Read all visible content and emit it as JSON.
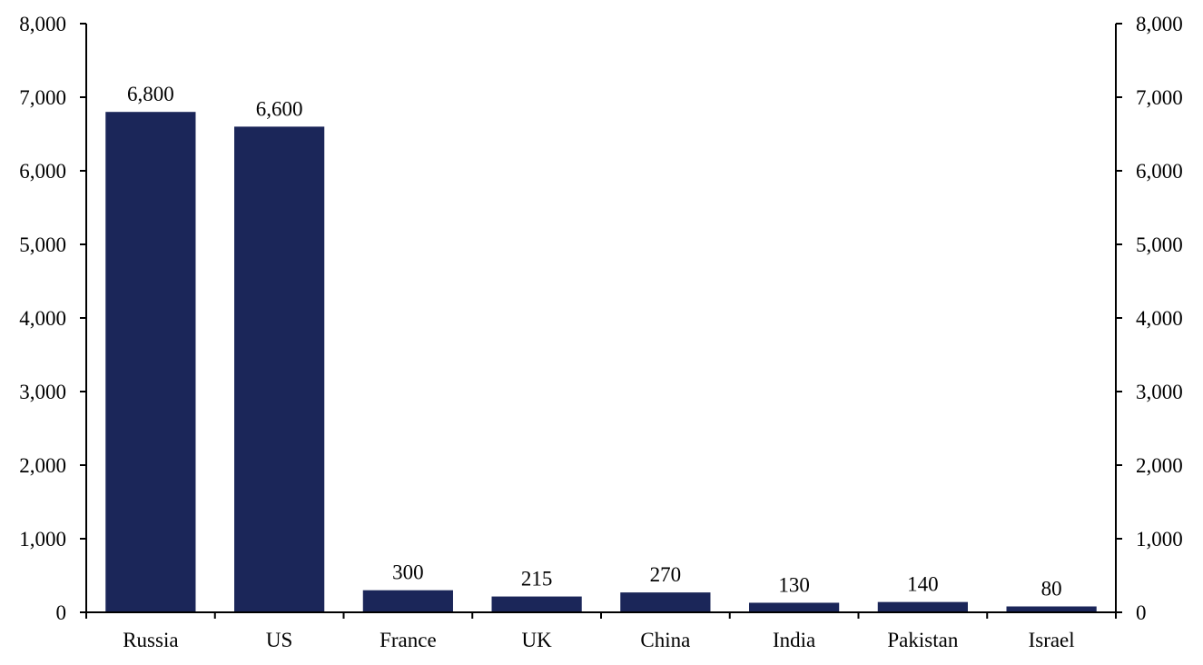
{
  "chart_data": {
    "type": "bar",
    "categories": [
      "Russia",
      "US",
      "France",
      "UK",
      "China",
      "India",
      "Pakistan",
      "Israel"
    ],
    "values": [
      6800,
      6600,
      300,
      215,
      270,
      130,
      140,
      80
    ],
    "data_labels": [
      "6,800",
      "6,600",
      "300",
      "215",
      "270",
      "130",
      "140",
      "80"
    ],
    "ylim": [
      0,
      8000
    ],
    "y_ticks": [
      0,
      1000,
      2000,
      3000,
      4000,
      5000,
      6000,
      7000,
      8000
    ],
    "y_tick_labels": [
      "0",
      "1,000",
      "2,000",
      "3,000",
      "4,000",
      "5,000",
      "6,000",
      "7,000",
      "8,000"
    ],
    "secondary_axis": "right",
    "grid": false,
    "legend": "none",
    "bar_color": "#1b2659"
  }
}
